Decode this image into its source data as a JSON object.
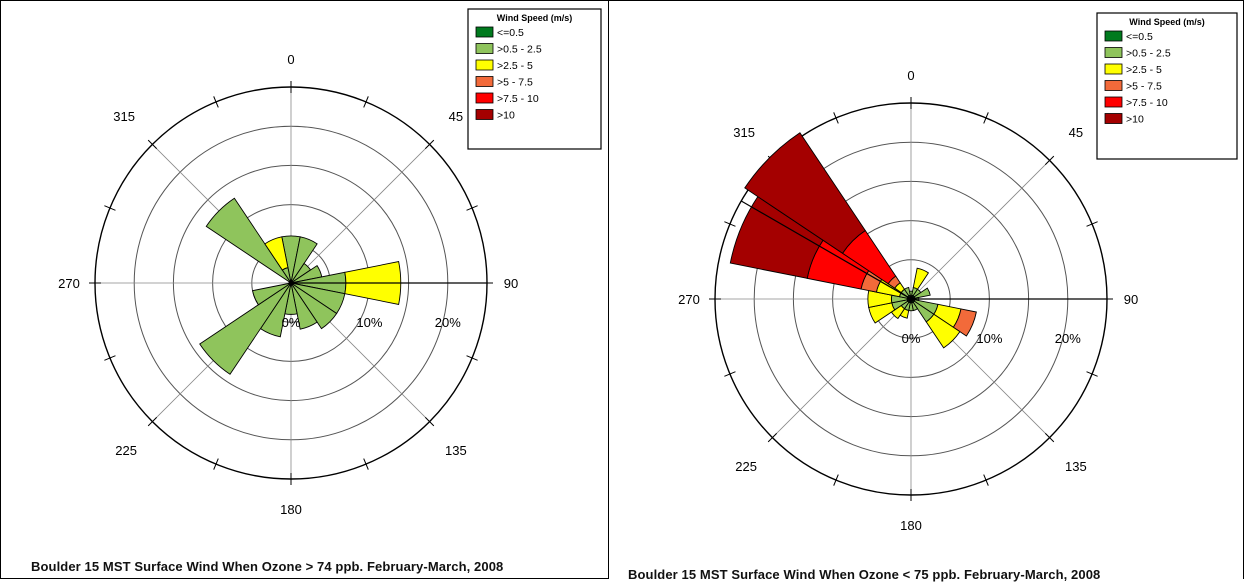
{
  "legend": {
    "title": "Wind Speed (m/s)",
    "bins": [
      {
        "label": "<=0.5",
        "color": "#007a1e"
      },
      {
        "label": ">0.5 - 2.5",
        "color": "#8fc45c"
      },
      {
        "label": ">2.5 - 5",
        "color": "#ffff00"
      },
      {
        "label": ">5 - 7.5",
        "color": "#f26a3a"
      },
      {
        "label": ">7.5 - 10",
        "color": "#ff0000"
      },
      {
        "label": ">10",
        "color": "#a40000"
      }
    ]
  },
  "directions": [
    "0",
    "45",
    "90",
    "135",
    "180",
    "225",
    "270",
    "315"
  ],
  "ring_labels": [
    "0%",
    "10%",
    "20%"
  ],
  "chart_data": [
    {
      "type": "wind_rose",
      "title": "Boulder 15 MST Surface Wind When Ozone > 74 ppb.   February-March, 2008",
      "rings_percent": [
        5,
        10,
        15,
        20,
        25
      ],
      "max_percent": 25,
      "sectors": [
        {
          "direction": 0,
          "segments": [
            0,
            6,
            0,
            0,
            0,
            0
          ]
        },
        {
          "direction": 22.5,
          "segments": [
            0,
            6,
            0,
            0,
            0,
            0
          ]
        },
        {
          "direction": 45,
          "segments": [
            0,
            3,
            0,
            0,
            0,
            0
          ]
        },
        {
          "direction": 67.5,
          "segments": [
            0,
            4,
            0,
            0,
            0,
            0
          ]
        },
        {
          "direction": 90,
          "segments": [
            0,
            7,
            7,
            0,
            0,
            0
          ]
        },
        {
          "direction": 112.5,
          "segments": [
            0,
            7,
            0,
            0,
            0,
            0
          ]
        },
        {
          "direction": 135,
          "segments": [
            0,
            7,
            0,
            0,
            0,
            0
          ]
        },
        {
          "direction": 157.5,
          "segments": [
            0,
            6,
            0,
            0,
            0,
            0
          ]
        },
        {
          "direction": 180,
          "segments": [
            0,
            4,
            0,
            0,
            0,
            0
          ]
        },
        {
          "direction": 202.5,
          "segments": [
            0,
            7,
            0,
            0,
            0,
            0
          ]
        },
        {
          "direction": 225,
          "segments": [
            0,
            14,
            0,
            0,
            0,
            0
          ]
        },
        {
          "direction": 247.5,
          "segments": [
            0,
            5,
            0,
            0,
            0,
            0
          ]
        },
        {
          "direction": 270,
          "segments": [
            0,
            0,
            0,
            0,
            0,
            0
          ]
        },
        {
          "direction": 292.5,
          "segments": [
            0,
            0,
            0,
            0,
            0,
            0
          ]
        },
        {
          "direction": 315,
          "segments": [
            0,
            13,
            0,
            0,
            0,
            0
          ]
        },
        {
          "direction": 337.5,
          "segments": [
            0,
            2,
            4,
            0,
            0,
            0
          ]
        }
      ]
    },
    {
      "type": "wind_rose",
      "title": "Boulder 15 MST Surface Wind When Ozone < 75 ppb.   February-March, 2008",
      "rings_percent": [
        5,
        10,
        15,
        20,
        25
      ],
      "max_percent": 25,
      "sectors": [
        {
          "direction": 0,
          "segments": [
            0,
            1,
            0,
            0,
            0,
            0
          ]
        },
        {
          "direction": 22.5,
          "segments": [
            0.5,
            1,
            2.5,
            0,
            0,
            0
          ]
        },
        {
          "direction": 45,
          "segments": [
            0.5,
            1,
            0,
            0,
            0,
            0
          ]
        },
        {
          "direction": 67.5,
          "segments": [
            0.5,
            2,
            0,
            0,
            0,
            0
          ]
        },
        {
          "direction": 90,
          "segments": [
            0.5,
            0.5,
            0,
            0,
            0,
            0
          ]
        },
        {
          "direction": 112.5,
          "segments": [
            0.5,
            3,
            3,
            2,
            0,
            0
          ]
        },
        {
          "direction": 135,
          "segments": [
            0.5,
            3,
            4,
            0,
            0,
            0
          ]
        },
        {
          "direction": 157.5,
          "segments": [
            0.5,
            1,
            0,
            0,
            0,
            0
          ]
        },
        {
          "direction": 180,
          "segments": [
            0.5,
            1,
            0,
            0,
            0,
            0
          ]
        },
        {
          "direction": 202.5,
          "segments": [
            0.5,
            1,
            1,
            0,
            0,
            0
          ]
        },
        {
          "direction": 225,
          "segments": [
            0.5,
            1,
            1.5,
            0,
            0,
            0
          ]
        },
        {
          "direction": 247.5,
          "segments": [
            0.5,
            2,
            3,
            0,
            0,
            0
          ]
        },
        {
          "direction": 270,
          "segments": [
            0.5,
            2,
            3,
            0,
            0,
            0
          ]
        },
        {
          "direction": 292.5,
          "segments": [
            0.5,
            1,
            3,
            2,
            7,
            10
          ]
        },
        {
          "direction": 315,
          "segments": [
            0.5,
            1,
            1,
            1,
            7,
            15
          ]
        },
        {
          "direction": 337.5,
          "segments": [
            0.5,
            1,
            0,
            0,
            0,
            0
          ]
        }
      ]
    }
  ]
}
